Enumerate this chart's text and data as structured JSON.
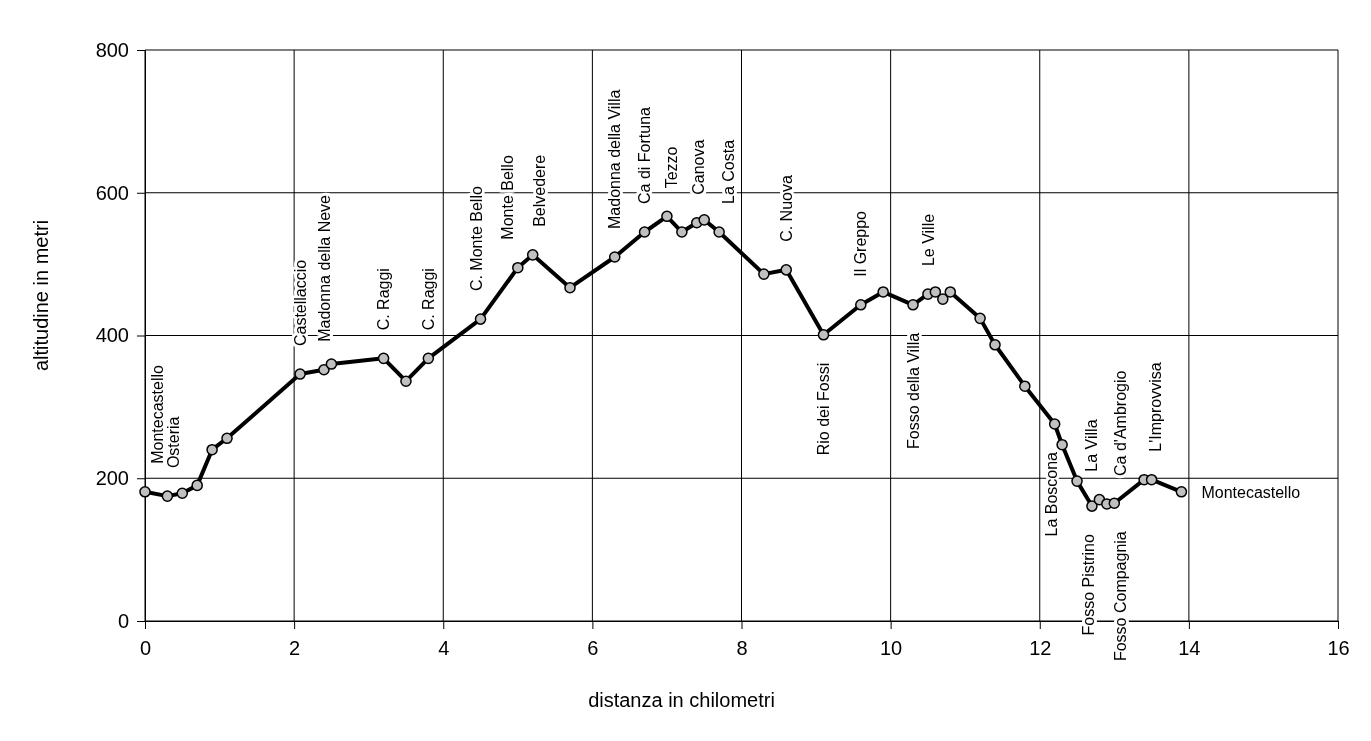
{
  "chart_data": {
    "type": "line",
    "xlabel": "distanza in chilometri",
    "ylabel": "altitudine  in metri",
    "xlim": [
      0,
      16
    ],
    "xticks": [
      0,
      2,
      4,
      6,
      8,
      10,
      12,
      14,
      16
    ],
    "ylim": [
      0,
      800
    ],
    "yticks": [
      0,
      200,
      400,
      600,
      800
    ],
    "grid": true,
    "marker": "circle",
    "line_style": "solid",
    "series": [
      {
        "color": "#000000",
        "x": [
          0,
          0.3,
          0.5,
          0.7,
          0.9,
          1.1,
          2.08,
          2.4,
          2.5,
          3.2,
          3.5,
          3.8,
          4.5,
          5.0,
          5.2,
          5.7,
          6.3,
          6.7,
          7.0,
          7.2,
          7.4,
          7.5,
          7.7,
          8.3,
          8.6,
          9.1,
          9.6,
          9.9,
          10.3,
          10.5,
          10.6,
          10.7,
          10.8,
          11.2,
          11.4,
          11.8,
          12.2,
          12.3,
          12.5,
          12.7,
          12.8,
          12.9,
          13.0,
          13.4,
          13.5,
          13.9
        ],
        "values": [
          181,
          175,
          179,
          190,
          240,
          256,
          346,
          352,
          360,
          368,
          336,
          368,
          423,
          495,
          513,
          467,
          510,
          545,
          567,
          545,
          558,
          562,
          545,
          486,
          492,
          401,
          443,
          461,
          443,
          458,
          461,
          451,
          461,
          424,
          387,
          329,
          276,
          247,
          196,
          161,
          170,
          164,
          165,
          198,
          198,
          181
        ]
      }
    ],
    "annotations": [
      {
        "text": "Montecastello",
        "x": 0,
        "y": 181
      },
      {
        "text": "Osteria",
        "x": 0.3,
        "y": 175
      },
      {
        "text": "Castellaccio",
        "x": 2.08,
        "y": 346
      },
      {
        "text": "Madonna della Neve",
        "x": 2.4,
        "y": 352
      },
      {
        "text": "C. Raggi",
        "x": 3.2,
        "y": 368
      },
      {
        "text": "C. Raggi",
        "x": 3.8,
        "y": 368
      },
      {
        "text": "C. Monte Bello",
        "x": 4.5,
        "y": 423
      },
      {
        "text": "Monte Bello",
        "x": 5.0,
        "y": 495
      },
      {
        "text": "Belvedere",
        "x": 5.2,
        "y": 513
      },
      {
        "text": "Madonna della Villa",
        "x": 6.3,
        "y": 510
      },
      {
        "text": "Ca di Fortuna",
        "x": 6.7,
        "y": 545
      },
      {
        "text": "Tezzo",
        "x": 7.0,
        "y": 567
      },
      {
        "text": "Canova",
        "x": 7.4,
        "y": 558
      },
      {
        "text": "La Costa",
        "x": 7.7,
        "y": 545
      },
      {
        "text": "C. Nuova",
        "x": 8.6,
        "y": 492
      },
      {
        "text": "Rio dei Fossi",
        "x": 9.1,
        "y": 401
      },
      {
        "text": "Il Greppo",
        "x": 9.6,
        "y": 443
      },
      {
        "text": "Fosso della Villa",
        "x": 10.3,
        "y": 443
      },
      {
        "text": "Le Ville",
        "x": 10.5,
        "y": 458
      },
      {
        "text": "La Boscona",
        "x": 12.2,
        "y": 276
      },
      {
        "text": "Fosso Pistrino",
        "x": 12.7,
        "y": 161
      },
      {
        "text": "La Villa",
        "x": 12.8,
        "y": 170
      },
      {
        "text": "Ca d'Ambrogio",
        "x": 12.9,
        "y": 164
      },
      {
        "text": "Fosso Compagnia",
        "x": 13.0,
        "y": 165
      },
      {
        "text": "L'Improvvisa",
        "x": 13.5,
        "y": 198
      },
      {
        "text": "Montecastello",
        "x": 13.9,
        "y": 181
      }
    ]
  }
}
